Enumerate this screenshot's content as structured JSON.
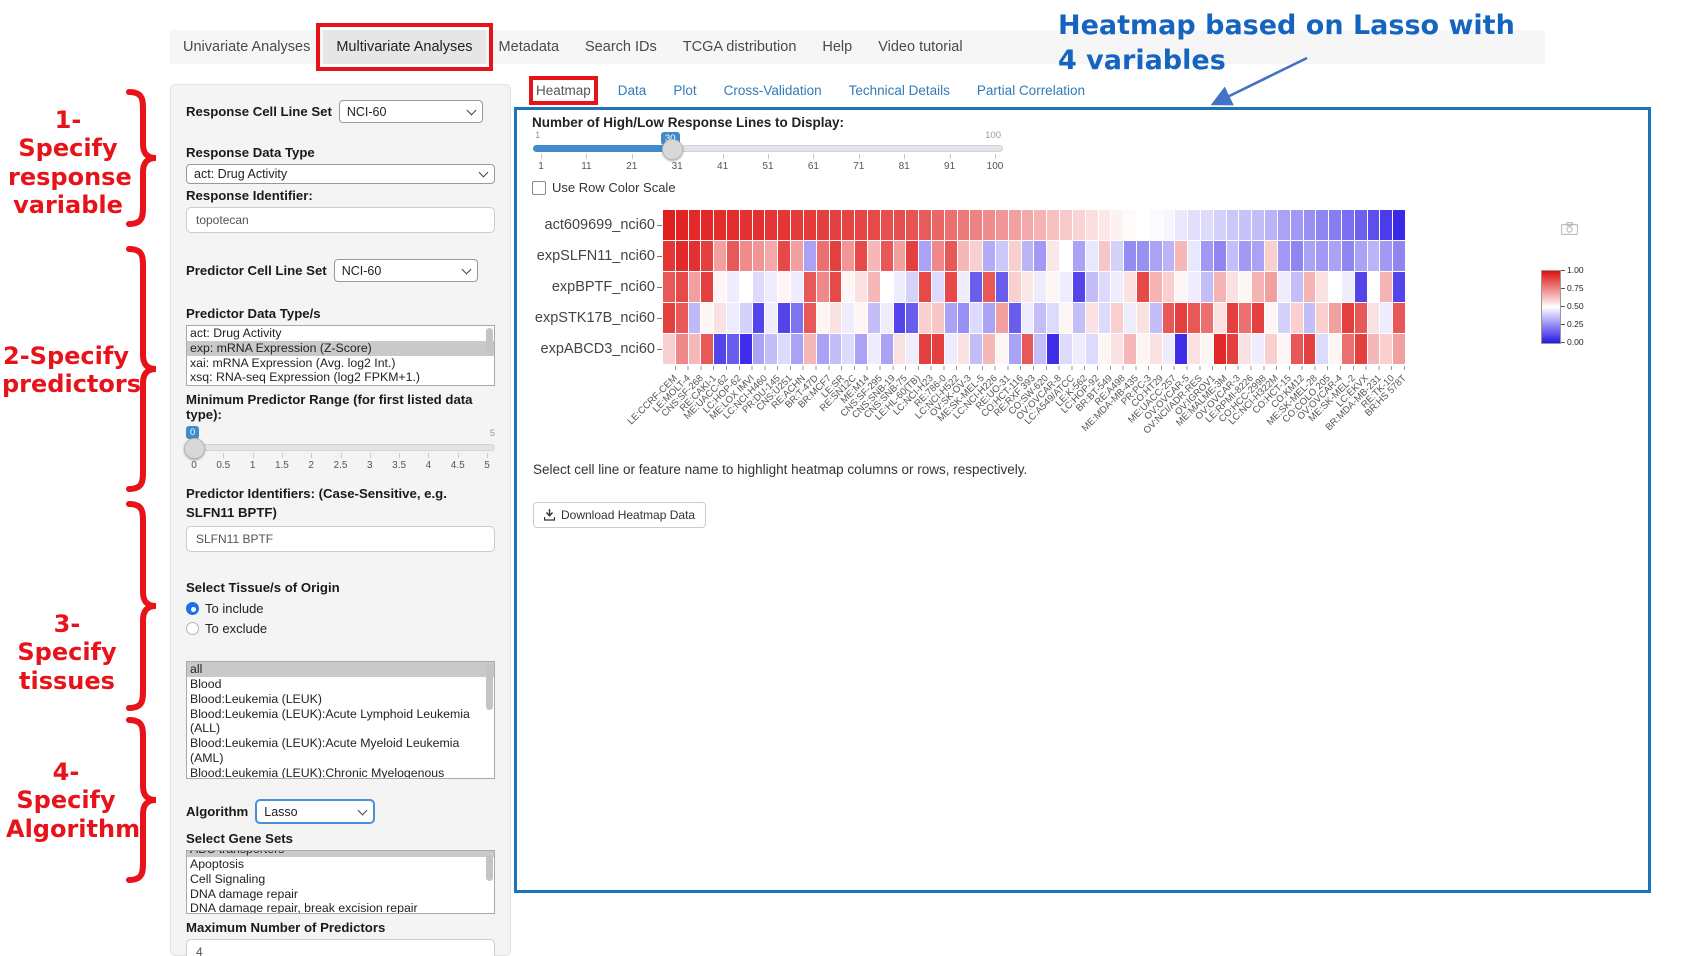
{
  "nav": {
    "tabs": [
      "Univariate Analyses",
      "Multivariate Analyses",
      "Metadata",
      "Search IDs",
      "TCGA distribution",
      "Help",
      "Video tutorial"
    ],
    "active_index": 1
  },
  "subtabs": {
    "tabs": [
      "Heatmap",
      "Data",
      "Plot",
      "Cross-Validation",
      "Technical Details",
      "Partial Correlation"
    ],
    "active_index": 0
  },
  "sidebar": {
    "response_cell_line_set": {
      "label": "Response Cell Line Set",
      "value": "NCI-60"
    },
    "response_data_type": {
      "label": "Response Data Type",
      "value": "act: Drug Activity"
    },
    "response_identifier": {
      "label": "Response Identifier:",
      "value": "topotecan"
    },
    "predictor_cell_line_set": {
      "label": "Predictor Cell Line Set",
      "value": "NCI-60"
    },
    "predictor_data_types": {
      "label": "Predictor Data Type/s",
      "options": [
        "act: Drug Activity",
        "exp: mRNA Expression (Z-Score)",
        "xai: mRNA Expression (Avg. log2 Int.)",
        "xsq: RNA-seq Expression (log2 FPKM+1.)"
      ],
      "selected_index": 1
    },
    "min_predictor_range": {
      "label": "Minimum Predictor Range (for first listed data type):",
      "value": "0",
      "min": "0",
      "max": "5",
      "ticks": [
        "0",
        "0.5",
        "1",
        "1.5",
        "2",
        "2.5",
        "3",
        "3.5",
        "4",
        "4.5",
        "5"
      ]
    },
    "predictor_identifiers": {
      "label": "Predictor Identifiers: (Case-Sensitive, e.g. SLFN11 BPTF)",
      "value": "SLFN11 BPTF"
    },
    "tissue": {
      "label": "Select Tissue/s of Origin",
      "include_label": "To include",
      "exclude_label": "To exclude",
      "include_selected": true,
      "options": [
        "all",
        "Blood",
        "Blood:Leukemia (LEUK)",
        "Blood:Leukemia (LEUK):Acute Lymphoid Leukemia (ALL)",
        "Blood:Leukemia (LEUK):Acute Myeloid Leukemia (AML)",
        "Blood:Leukemia (LEUK):Chronic Myelogenous Leukemia (CML)"
      ],
      "selected_index": 0
    },
    "algorithm": {
      "label": "Algorithm",
      "value": "Lasso"
    },
    "gene_sets": {
      "label": "Select Gene Sets",
      "options": [
        "ABC transporters",
        "Apoptosis",
        "Cell Signaling",
        "DNA damage repair",
        "DNA damage repair, break excision repair"
      ],
      "selected_index": 0
    },
    "max_predictors": {
      "label": "Maximum Number of Predictors",
      "value": "4"
    }
  },
  "main": {
    "slider": {
      "label": "Number of High/Low Response Lines to Display:",
      "value": "30",
      "min": "1",
      "max": "100",
      "ticks": [
        "1",
        "11",
        "21",
        "31",
        "41",
        "51",
        "61",
        "71",
        "81",
        "91",
        "100"
      ]
    },
    "row_scale_label": "Use Row Color Scale",
    "hint": "Select cell line or feature name to highlight heatmap columns or rows, respectively.",
    "download_label": "Download Heatmap Data",
    "download_icon_glyph": "download-tray-arrow",
    "camera_icon_glyph": "camera"
  },
  "chart_data": {
    "type": "heatmap",
    "rows": [
      "act609699_nci60",
      "expSLFN11_nci60",
      "expBPTF_nci60",
      "expSTK17B_nci60",
      "expABCD3_nci60"
    ],
    "columns": [
      "LE:CCRF-CEM",
      "LE:MOLT-4",
      "CNS:SF-268",
      "RE:CAKI-1",
      "ME:UACC-62",
      "LC:HOP-62",
      "ME:LOX IMVI",
      "LC:NCI-H460",
      "PR:DU-145",
      "CNS:U251",
      "RE:ACHN",
      "BR:T-47D",
      "BR:MCF7",
      "LE:SR",
      "RE:SN12C",
      "ME:M14",
      "CNS:SF-295",
      "CNS:SNB-19",
      "CNS:SNB-75",
      "LE:HL-60(TB)",
      "LC:NCI-H23",
      "RE:786-0",
      "LC:NCI-H522",
      "OV:SK-OV-3",
      "ME:SK-MEL-5",
      "LC:NCI-H226",
      "RE:UO-31",
      "CO:HCT-116",
      "RE:RXF 393",
      "CO:SW-620",
      "OV:OVCAR-8",
      "LC:A549/ATCC",
      "LE:K-562",
      "LC:HOP-92",
      "BR:BT-549",
      "RE:A498",
      "ME:MDA-MB-435",
      "PR:PC-3",
      "CO:HT29",
      "ME:UACC-257",
      "OV:OVCAR-5",
      "OV:NCI/ADR-RES",
      "OV:IGROV1",
      "ME:MALME-3M",
      "OV:OVCAR-3",
      "LE:RPMI-8226",
      "CO:HCC-2998",
      "LC:NCI-H322M",
      "CO:HCT-15",
      "CO:KM12",
      "ME:SK-MEL-28",
      "CO:COLO 205",
      "OV:OVCAR-4",
      "ME:SK-MEL-2",
      "LC:EKVX",
      "BR:MDA-MB-231",
      "RE:TK-10",
      "BR:HS 578T"
    ],
    "series": [
      {
        "name": "act609699_nci60",
        "values": [
          0.97,
          0.96,
          0.95,
          0.95,
          0.94,
          0.94,
          0.93,
          0.93,
          0.92,
          0.92,
          0.91,
          0.91,
          0.9,
          0.9,
          0.89,
          0.89,
          0.88,
          0.87,
          0.87,
          0.86,
          0.84,
          0.82,
          0.8,
          0.78,
          0.76,
          0.74,
          0.72,
          0.7,
          0.68,
          0.66,
          0.63,
          0.61,
          0.59,
          0.57,
          0.55,
          0.53,
          0.51,
          0.5,
          0.49,
          0.48,
          0.45,
          0.43,
          0.42,
          0.4,
          0.38,
          0.37,
          0.36,
          0.34,
          0.3,
          0.28,
          0.26,
          0.24,
          0.22,
          0.19,
          0.16,
          0.12,
          0.08,
          0.04
        ]
      },
      {
        "name": "expSLFN11_nci60",
        "values": [
          0.92,
          0.95,
          0.93,
          0.9,
          0.7,
          0.85,
          0.74,
          0.72,
          0.68,
          0.88,
          0.7,
          0.3,
          0.8,
          0.9,
          0.72,
          0.88,
          0.65,
          0.85,
          0.7,
          0.9,
          0.3,
          0.75,
          0.85,
          0.65,
          0.6,
          0.32,
          0.38,
          0.6,
          0.34,
          0.28,
          0.55,
          0.5,
          0.3,
          0.45,
          0.62,
          0.4,
          0.25,
          0.26,
          0.3,
          0.34,
          0.65,
          0.45,
          0.28,
          0.24,
          0.36,
          0.28,
          0.3,
          0.6,
          0.28,
          0.24,
          0.3,
          0.28,
          0.3,
          0.24,
          0.3,
          0.34,
          0.28,
          0.24
        ]
      },
      {
        "name": "expBPTF_nci60",
        "values": [
          0.85,
          0.88,
          0.7,
          0.9,
          0.52,
          0.46,
          0.5,
          0.42,
          0.46,
          0.52,
          0.46,
          0.85,
          0.75,
          0.88,
          0.52,
          0.56,
          0.65,
          0.5,
          0.46,
          0.4,
          0.88,
          0.42,
          0.88,
          0.46,
          0.15,
          0.85,
          0.15,
          0.6,
          0.55,
          0.46,
          0.52,
          0.46,
          0.1,
          0.36,
          0.42,
          0.46,
          0.56,
          0.88,
          0.66,
          0.6,
          0.52,
          0.46,
          0.36,
          0.66,
          0.56,
          0.52,
          0.66,
          0.7,
          0.46,
          0.36,
          0.66,
          0.56,
          0.5,
          0.46,
          0.1,
          0.5,
          0.66,
          0.1
        ]
      },
      {
        "name": "expSTK17B_nci60",
        "values": [
          0.9,
          0.85,
          0.35,
          0.52,
          0.56,
          0.46,
          0.4,
          0.1,
          0.46,
          0.1,
          0.2,
          0.85,
          0.52,
          0.56,
          0.46,
          0.52,
          0.36,
          0.46,
          0.1,
          0.15,
          0.6,
          0.62,
          0.3,
          0.26,
          0.42,
          0.3,
          0.7,
          0.15,
          0.46,
          0.36,
          0.42,
          0.52,
          0.36,
          0.56,
          0.42,
          0.6,
          0.46,
          0.56,
          0.36,
          0.85,
          0.9,
          0.85,
          0.8,
          0.56,
          0.9,
          0.8,
          0.9,
          0.52,
          0.4,
          0.6,
          0.36,
          0.6,
          0.7,
          0.9,
          0.85,
          0.56,
          0.46,
          0.85
        ]
      },
      {
        "name": "expABCD3_nci60",
        "values": [
          0.6,
          0.75,
          0.65,
          0.85,
          0.1,
          0.15,
          0.05,
          0.3,
          0.36,
          0.42,
          0.3,
          0.65,
          0.3,
          0.36,
          0.42,
          0.3,
          0.46,
          0.3,
          0.56,
          0.46,
          0.9,
          0.9,
          0.46,
          0.56,
          0.36,
          0.65,
          0.52,
          0.3,
          0.85,
          0.36,
          0.05,
          0.42,
          0.46,
          0.42,
          0.52,
          0.56,
          0.65,
          0.52,
          0.56,
          0.46,
          0.05,
          0.56,
          0.52,
          0.95,
          0.9,
          0.56,
          0.46,
          0.6,
          0.52,
          0.85,
          0.9,
          0.42,
          0.52,
          0.8,
          0.9,
          0.65,
          0.6,
          0.7
        ]
      }
    ],
    "colorscale": {
      "min": 0.0,
      "max": 1.0,
      "low_color": "#2917e6",
      "mid_color": "#ffffff",
      "high_color": "#df1010"
    },
    "legend_ticks": [
      "1.00",
      "0.75",
      "0.50",
      "0.25",
      "0.00"
    ],
    "legend_position": "right",
    "grid": false
  },
  "annotations": {
    "accent_red": "#e8131a",
    "accent_blue": "#1565c0",
    "steps": [
      {
        "text": "1-Specify\nresponse\nvariable"
      },
      {
        "text": "2-Specify\npredictors"
      },
      {
        "text": "3-Specify\ntissues"
      },
      {
        "text": "4-Specify\nAlgorithm"
      }
    ],
    "heatmap_note": "Heatmap based on Lasso with 4 variables"
  }
}
